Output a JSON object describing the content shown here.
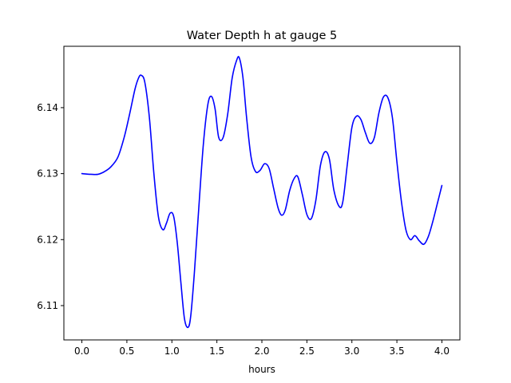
{
  "chart_data": {
    "type": "line",
    "title": "Water Depth h at gauge 5",
    "xlabel": "hours",
    "ylabel": "",
    "xlim": [
      -0.2,
      4.2
    ],
    "ylim": [
      6.1048,
      6.1493
    ],
    "xticks": [
      0.0,
      0.5,
      1.0,
      1.5,
      2.0,
      2.5,
      3.0,
      3.5,
      4.0
    ],
    "xtick_labels": [
      "0.0",
      "0.5",
      "1.0",
      "1.5",
      "2.0",
      "2.5",
      "3.0",
      "3.5",
      "4.0"
    ],
    "yticks": [
      6.11,
      6.12,
      6.13,
      6.14
    ],
    "ytick_labels": [
      "6.11",
      "6.12",
      "6.13",
      "6.14"
    ],
    "grid": false,
    "legend": "none",
    "series": [
      {
        "color": "#0000ff",
        "x": [
          0.0,
          0.1,
          0.18,
          0.25,
          0.32,
          0.4,
          0.47,
          0.53,
          0.59,
          0.63,
          0.66,
          0.7,
          0.75,
          0.8,
          0.85,
          0.9,
          0.94,
          0.98,
          1.02,
          1.06,
          1.1,
          1.14,
          1.18,
          1.21,
          1.25,
          1.3,
          1.35,
          1.4,
          1.44,
          1.48,
          1.52,
          1.57,
          1.62,
          1.67,
          1.72,
          1.75,
          1.79,
          1.83,
          1.88,
          1.93,
          1.98,
          2.03,
          2.08,
          2.13,
          2.18,
          2.22,
          2.26,
          2.31,
          2.36,
          2.4,
          2.45,
          2.5,
          2.55,
          2.6,
          2.65,
          2.7,
          2.75,
          2.8,
          2.86,
          2.9,
          2.95,
          3.0,
          3.05,
          3.1,
          3.15,
          3.2,
          3.25,
          3.3,
          3.35,
          3.4,
          3.45,
          3.5,
          3.55,
          3.6,
          3.65,
          3.7,
          3.75,
          3.8,
          3.85,
          3.9,
          3.95,
          4.0
        ],
        "y": [
          6.13,
          6.1299,
          6.1299,
          6.1303,
          6.131,
          6.1325,
          6.1355,
          6.139,
          6.1428,
          6.1445,
          6.1449,
          6.1438,
          6.1385,
          6.13,
          6.1235,
          6.1215,
          6.1225,
          6.124,
          6.1235,
          6.1195,
          6.1135,
          6.108,
          6.1067,
          6.1085,
          6.115,
          6.125,
          6.1345,
          6.1405,
          6.1417,
          6.1398,
          6.1355,
          6.1355,
          6.139,
          6.1445,
          6.1472,
          6.1475,
          6.1445,
          6.1385,
          6.1325,
          6.1303,
          6.1305,
          6.1315,
          6.1308,
          6.1278,
          6.1248,
          6.1237,
          6.1245,
          6.1275,
          6.1293,
          6.1295,
          6.1268,
          6.1238,
          6.1232,
          6.126,
          6.1312,
          6.1333,
          6.1322,
          6.1275,
          6.125,
          6.1258,
          6.1315,
          6.137,
          6.1387,
          6.1382,
          6.1362,
          6.1346,
          6.1355,
          6.1392,
          6.1416,
          6.1415,
          6.1385,
          6.1318,
          6.1258,
          6.1215,
          6.12,
          6.1206,
          6.1198,
          6.1193,
          6.1205,
          6.1228,
          6.1255,
          6.1282
        ]
      }
    ]
  }
}
